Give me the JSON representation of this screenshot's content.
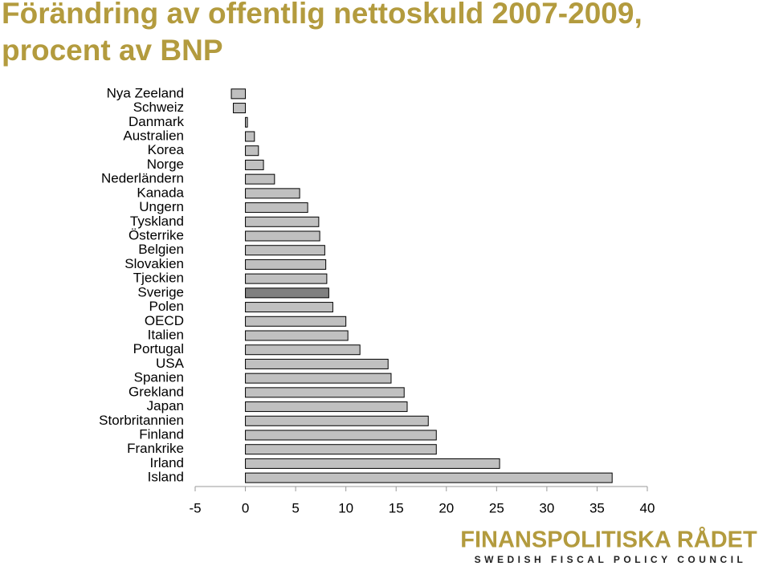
{
  "chart_data": {
    "type": "barh",
    "title": "Förändring av offentlig nettoskuld 2007-2009, procent av BNP",
    "categories": [
      "Nya Zeeland",
      "Schweiz",
      "Danmark",
      "Australien",
      "Korea",
      "Norge",
      "Nederländern",
      "Kanada",
      "Ungern",
      "Tyskland",
      "Österrike",
      "Belgien",
      "Slovakien",
      "Tjeckien",
      "Sverige",
      "Polen",
      "OECD",
      "Italien",
      "Portugal",
      "USA",
      "Spanien",
      "Grekland",
      "Japan",
      "Storbritannien",
      "Finland",
      "Frankrike",
      "Irland",
      "Island"
    ],
    "values": [
      -1.4,
      -1.2,
      0.2,
      0.9,
      1.3,
      1.8,
      2.9,
      5.4,
      6.2,
      7.3,
      7.4,
      7.9,
      8.0,
      8.1,
      8.3,
      8.7,
      10.0,
      10.2,
      11.4,
      14.2,
      14.5,
      15.8,
      16.1,
      18.2,
      19.0,
      19.0,
      25.3,
      36.5
    ],
    "color": "#c0c0c0",
    "highlight": {
      "category": "Sverige",
      "color": "#808080"
    },
    "xlim": [
      -5,
      40
    ],
    "xticks": [
      -5,
      0,
      5,
      10,
      15,
      20,
      25,
      30,
      35,
      40
    ],
    "grid": false
  },
  "logo": {
    "name": "FINANSPOLITISKA RÅDET",
    "subtitle": "SWEDISH FISCAL POLICY COUNCIL"
  }
}
